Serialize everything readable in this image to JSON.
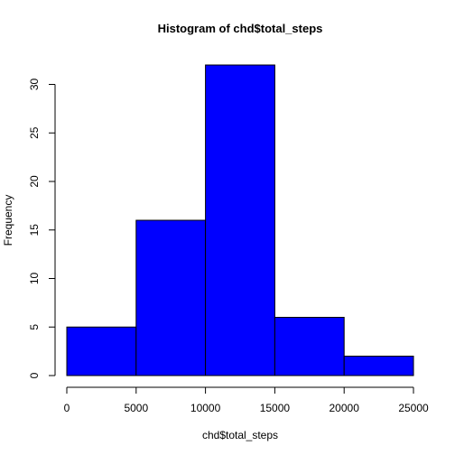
{
  "chart_data": {
    "type": "bar",
    "title": "Histogram of chd$total_steps",
    "xlabel": "chd$total_steps",
    "ylabel": "Frequency",
    "bins": [
      {
        "start": 0,
        "end": 5000,
        "count": 5
      },
      {
        "start": 5000,
        "end": 10000,
        "count": 16
      },
      {
        "start": 10000,
        "end": 15000,
        "count": 32
      },
      {
        "start": 15000,
        "end": 20000,
        "count": 6
      },
      {
        "start": 20000,
        "end": 25000,
        "count": 2
      }
    ],
    "xlim": [
      0,
      25000
    ],
    "ylim": [
      0,
      32
    ],
    "xticks": [
      0,
      5000,
      10000,
      15000,
      20000,
      25000
    ],
    "yticks": [
      0,
      5,
      10,
      15,
      20,
      25,
      30
    ],
    "bar_color": "#0000ff",
    "edge_color": "#000000",
    "grid": false
  }
}
